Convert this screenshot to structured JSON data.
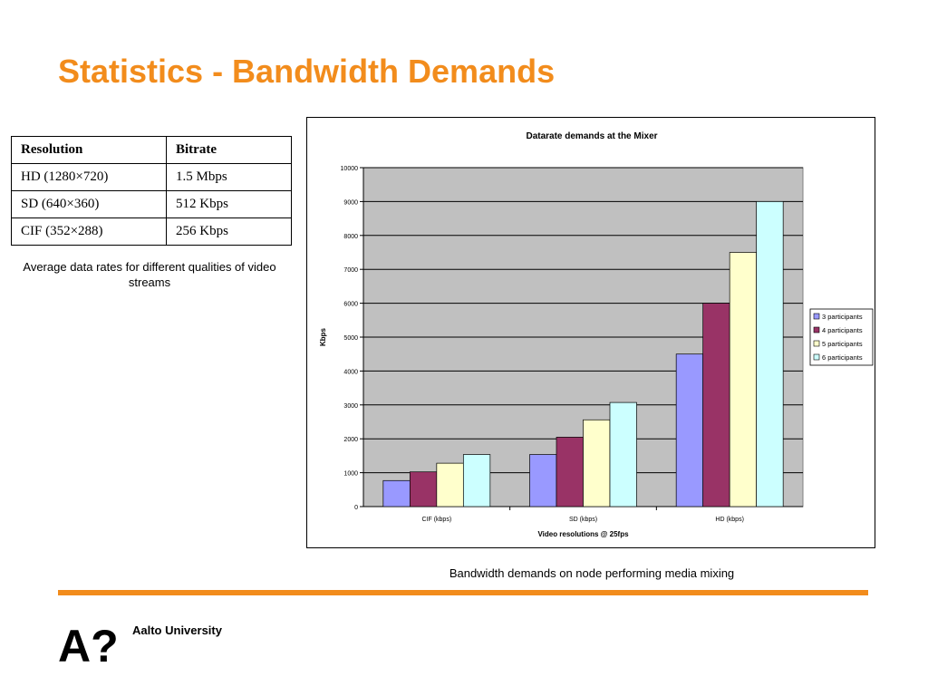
{
  "title": "Statistics - Bandwidth Demands",
  "table": {
    "headers": [
      "Resolution",
      "Bitrate"
    ],
    "rows": [
      [
        "HD (1280×720)",
        "1.5 Mbps"
      ],
      [
        "SD (640×360)",
        "512 Kbps"
      ],
      [
        "CIF (352×288)",
        "256 Kbps"
      ]
    ],
    "caption": "Average data rates for different qualities of video streams"
  },
  "chart_caption": "Bandwidth demands on node performing media mixing",
  "footer": {
    "logo_text": "Aalto University",
    "logo_mark": "A?",
    "accent_color": "#f28c1c"
  },
  "chart_data": {
    "type": "bar",
    "title": "Datarate demands at the Mixer",
    "xlabel": "Video resolutions @ 25fps",
    "ylabel": "Kbps",
    "ylim": [
      0,
      10000
    ],
    "yticks": [
      0,
      1000,
      2000,
      3000,
      4000,
      5000,
      6000,
      7000,
      8000,
      9000,
      10000
    ],
    "grid": true,
    "legend_position": "right",
    "categories": [
      "CIF (kbps)",
      "SD (kbps)",
      "HD (kbps)"
    ],
    "series": [
      {
        "name": "3 participants",
        "color": "#9999ff",
        "values": [
          768,
          1536,
          4500
        ]
      },
      {
        "name": "4 participants",
        "color": "#993366",
        "values": [
          1024,
          2048,
          6000
        ]
      },
      {
        "name": "5 participants",
        "color": "#ffffcc",
        "values": [
          1280,
          2560,
          7500
        ]
      },
      {
        "name": "6 participants",
        "color": "#ccffff",
        "values": [
          1536,
          3072,
          9000
        ]
      }
    ],
    "plot_background": "#c0c0c0"
  }
}
